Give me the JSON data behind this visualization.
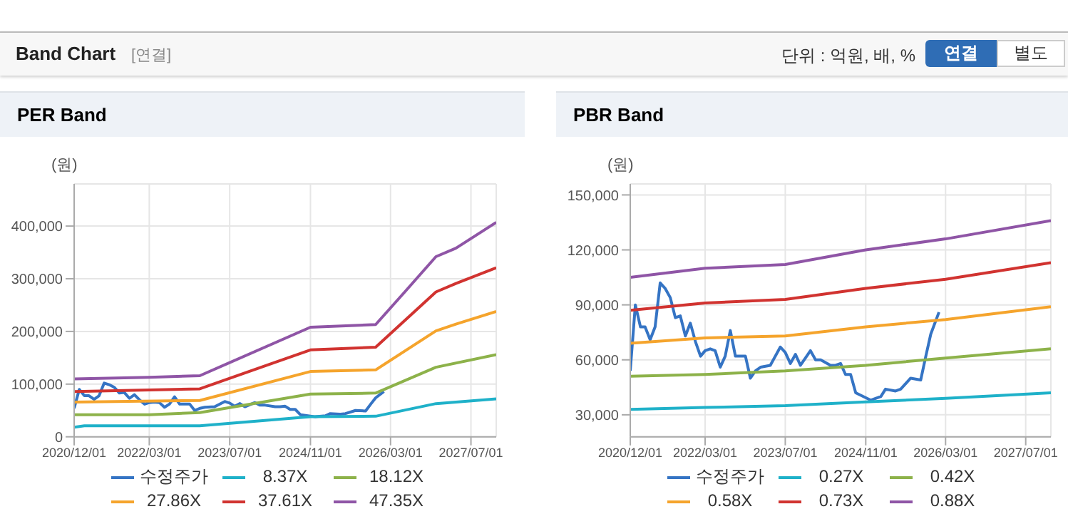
{
  "chart_data": [
    {
      "type": "line",
      "title": "PER Band",
      "ylabel": "(원)",
      "annotations": [
        "Band Chart",
        "[연결]",
        "단위 : 억원, 배, %",
        "연결",
        "별도"
      ],
      "xlim": [
        "2020-12-01",
        "2027-12-01"
      ],
      "xticks": [
        {
          "value": "2020-12-01",
          "label": "2020/12/01"
        },
        {
          "value": "2022-03-01",
          "label": "2022/03/01"
        },
        {
          "value": "2023-07-01",
          "label": "2023/07/01"
        },
        {
          "value": "2024-11-01",
          "label": "2024/11/01"
        },
        {
          "value": "2026-03-01",
          "label": "2026/03/01"
        },
        {
          "value": "2027-07-01",
          "label": "2027/07/01"
        }
      ],
      "ylim": [
        0,
        480000
      ],
      "yticks": [
        {
          "value": 0,
          "label": "0"
        },
        {
          "value": 100000,
          "label": "100,000"
        },
        {
          "value": 200000,
          "label": "200,000"
        },
        {
          "value": 300000,
          "label": "300,000"
        },
        {
          "value": 400000,
          "label": "400,000"
        }
      ],
      "grid": true,
      "legend": "bottom",
      "marker": "none",
      "line_style": "solid",
      "series": [
        {
          "name": "수정주가",
          "color": "#3574c4",
          "x": [
            "2020-12",
            "2021-01",
            "2021-02",
            "2021-03",
            "2021-04",
            "2021-05",
            "2021-06",
            "2021-07",
            "2021-08",
            "2021-09",
            "2021-10",
            "2021-11",
            "2021-12",
            "2022-01",
            "2022-02",
            "2022-03",
            "2022-04",
            "2022-05",
            "2022-06",
            "2022-07",
            "2022-08",
            "2022-09",
            "2022-11",
            "2022-12",
            "2023-01",
            "2023-02",
            "2023-04",
            "2023-06",
            "2023-07",
            "2023-08",
            "2023-09",
            "2023-10",
            "2023-12",
            "2024-01",
            "2024-02",
            "2024-04",
            "2024-05",
            "2024-06",
            "2024-07",
            "2024-08",
            "2024-09",
            "2024-12",
            "2025-02",
            "2025-03",
            "2025-05",
            "2025-06",
            "2025-08",
            "2025-10",
            "2025-11",
            "2025-12",
            "2026-01-20"
          ],
          "values": [
            54000,
            90000,
            78000,
            78000,
            71000,
            78000,
            102000,
            99000,
            94000,
            83000,
            84000,
            73000,
            80000,
            70000,
            62000,
            65000,
            66000,
            65000,
            56000,
            62000,
            76000,
            62000,
            62000,
            50000,
            54000,
            56000,
            57000,
            67000,
            64000,
            58000,
            63000,
            57000,
            65000,
            60000,
            60000,
            57000,
            57000,
            58000,
            52000,
            52000,
            42000,
            38000,
            40000,
            44000,
            43000,
            44000,
            50000,
            49000,
            62000,
            74000,
            86000
          ]
        },
        {
          "name": "8.37X",
          "color": "#1fb1c9",
          "x": [
            "2020-12",
            "2021-02",
            "2023-01",
            "2024-11",
            "2025-12",
            "2026-12",
            "2027-12"
          ],
          "values": [
            18000,
            21000,
            21000,
            38000,
            39000,
            63000,
            72000
          ]
        },
        {
          "name": "18.12X",
          "color": "#8db24a",
          "x": [
            "2020-12",
            "2022-03",
            "2023-01",
            "2024-11",
            "2025-12",
            "2026-12",
            "2027-12"
          ],
          "values": [
            42000,
            42000,
            46000,
            81000,
            83000,
            132000,
            156000
          ]
        },
        {
          "name": "27.86X",
          "color": "#f5a42c",
          "x": [
            "2020-12",
            "2023-01",
            "2024-11",
            "2025-12",
            "2026-12",
            "2027-04",
            "2027-12"
          ],
          "values": [
            66000,
            69000,
            124000,
            127000,
            201000,
            214000,
            238000
          ]
        },
        {
          "name": "37.61X",
          "color": "#d13330",
          "x": [
            "2020-12",
            "2023-01",
            "2024-11",
            "2025-12",
            "2026-12",
            "2027-04",
            "2027-12"
          ],
          "values": [
            86000,
            91000,
            165000,
            170000,
            275000,
            291000,
            321000
          ]
        },
        {
          "name": "47.35X",
          "color": "#8f55a6",
          "x": [
            "2020-12",
            "2022-03",
            "2023-01",
            "2024-11",
            "2025-12",
            "2026-06",
            "2026-12",
            "2027-04",
            "2027-12"
          ],
          "values": [
            110000,
            113000,
            116000,
            208000,
            213000,
            277000,
            342000,
            358000,
            407000
          ]
        }
      ]
    },
    {
      "type": "line",
      "title": "PBR Band",
      "ylabel": "(원)",
      "xlim": [
        "2020-12-01",
        "2027-12-01"
      ],
      "xticks": [
        {
          "value": "2020-12-01",
          "label": "2020/12/01"
        },
        {
          "value": "2022-03-01",
          "label": "2022/03/01"
        },
        {
          "value": "2023-07-01",
          "label": "2023/07/01"
        },
        {
          "value": "2024-11-01",
          "label": "2024/11/01"
        },
        {
          "value": "2026-03-01",
          "label": "2026/03/01"
        },
        {
          "value": "2027-07-01",
          "label": "2027/07/01"
        }
      ],
      "ylim": [
        18000,
        156000
      ],
      "yticks": [
        {
          "value": 30000,
          "label": "30,000"
        },
        {
          "value": 60000,
          "label": "60,000"
        },
        {
          "value": 90000,
          "label": "90,000"
        },
        {
          "value": 120000,
          "label": "120,000"
        },
        {
          "value": 150000,
          "label": "150,000"
        }
      ],
      "grid": true,
      "legend": "bottom",
      "marker": "none",
      "line_style": "solid",
      "series": [
        {
          "name": "수정주가",
          "color": "#3574c4",
          "x": [
            "2020-12",
            "2021-01",
            "2021-02",
            "2021-03",
            "2021-04",
            "2021-05",
            "2021-06",
            "2021-07",
            "2021-08",
            "2021-09",
            "2021-10",
            "2021-11",
            "2021-12",
            "2022-01",
            "2022-02",
            "2022-03",
            "2022-04",
            "2022-05",
            "2022-06",
            "2022-07",
            "2022-08",
            "2022-09",
            "2022-11",
            "2022-12",
            "2023-01",
            "2023-02",
            "2023-04",
            "2023-06",
            "2023-07",
            "2023-08",
            "2023-09",
            "2023-10",
            "2023-12",
            "2024-01",
            "2024-02",
            "2024-04",
            "2024-05",
            "2024-06",
            "2024-07",
            "2024-08",
            "2024-09",
            "2024-12",
            "2025-02",
            "2025-03",
            "2025-05",
            "2025-06",
            "2025-08",
            "2025-10",
            "2025-11",
            "2025-12",
            "2026-01-20"
          ],
          "values": [
            54000,
            90000,
            78000,
            78000,
            71000,
            78000,
            102000,
            99000,
            94000,
            83000,
            84000,
            73000,
            80000,
            70000,
            62000,
            65000,
            66000,
            65000,
            56000,
            62000,
            76000,
            62000,
            62000,
            50000,
            54000,
            56000,
            57000,
            67000,
            64000,
            58000,
            63000,
            57000,
            65000,
            60000,
            60000,
            57000,
            57000,
            58000,
            52000,
            52000,
            42000,
            38000,
            40000,
            44000,
            43000,
            44000,
            50000,
            49000,
            62000,
            74000,
            86000
          ]
        },
        {
          "name": "0.27X",
          "color": "#1fb1c9",
          "x": [
            "2020-12",
            "2022-03",
            "2023-07",
            "2024-11",
            "2026-03",
            "2027-12"
          ],
          "values": [
            33000,
            34000,
            35000,
            37000,
            39000,
            42000
          ]
        },
        {
          "name": "0.42X",
          "color": "#8db24a",
          "x": [
            "2020-12",
            "2022-03",
            "2023-07",
            "2024-11",
            "2026-03",
            "2027-12"
          ],
          "values": [
            51000,
            52000,
            54000,
            57000,
            61000,
            66000
          ]
        },
        {
          "name": "0.58X",
          "color": "#f5a42c",
          "x": [
            "2020-12",
            "2022-03",
            "2023-07",
            "2024-11",
            "2026-03",
            "2027-12"
          ],
          "values": [
            69000,
            72000,
            73000,
            78000,
            82000,
            89000
          ]
        },
        {
          "name": "0.73X",
          "color": "#d13330",
          "x": [
            "2020-12",
            "2022-03",
            "2023-07",
            "2024-11",
            "2026-03",
            "2027-12"
          ],
          "values": [
            87000,
            91000,
            93000,
            99000,
            104000,
            113000
          ]
        },
        {
          "name": "0.88X",
          "color": "#8f55a6",
          "x": [
            "2020-12",
            "2022-03",
            "2023-07",
            "2024-11",
            "2026-03",
            "2027-12"
          ],
          "values": [
            105000,
            110000,
            112000,
            120000,
            126000,
            136000
          ]
        }
      ]
    }
  ]
}
